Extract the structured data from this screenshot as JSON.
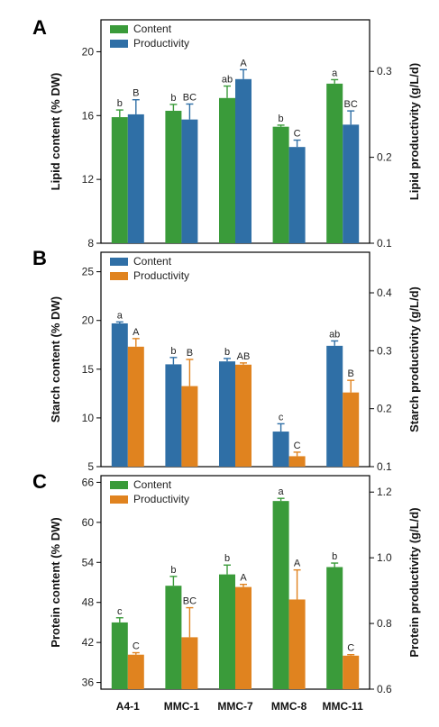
{
  "colors": {
    "green": "#3a9b3a",
    "blue": "#2f6fa6",
    "orange": "#e0831f"
  },
  "categories": [
    "A4-1",
    "MMC-1",
    "MMC-7",
    "MMC-8",
    "MMC-11"
  ],
  "chart_data": [
    {
      "type": "bar",
      "panel": "A",
      "ylabel": "Lipid content (% DW)",
      "y2label": "Lipid productivity (g/L/d)",
      "ylim": [
        8,
        22
      ],
      "yticks": [
        8,
        12,
        16,
        20
      ],
      "y2lim": [
        0.1,
        0.36
      ],
      "y2ticks": [
        "0.1",
        "0.2",
        "0.3"
      ],
      "legend": [
        "Content",
        "Productivity"
      ],
      "legend_position": "top-left",
      "series": [
        {
          "name": "Content",
          "axis": "left",
          "color": "green",
          "values": [
            15.9,
            16.3,
            17.1,
            15.3,
            18.0
          ],
          "errors": [
            0.45,
            0.4,
            0.75,
            0.1,
            0.25
          ],
          "letters": [
            "b",
            "b",
            "ab",
            "b",
            "a"
          ]
        },
        {
          "name": "Productivity",
          "axis": "right",
          "color": "blue",
          "values": [
            0.25,
            0.244,
            0.291,
            0.212,
            0.238
          ],
          "errors": [
            0.017,
            0.018,
            0.011,
            0.008,
            0.016
          ],
          "letters": [
            "B",
            "BC",
            "A",
            "C",
            "BC"
          ]
        }
      ]
    },
    {
      "type": "bar",
      "panel": "B",
      "ylabel": "Starch content (% DW)",
      "y2label": "Starch productivity (g/L/d)",
      "ylim": [
        5,
        27
      ],
      "yticks": [
        5,
        10,
        15,
        20,
        25
      ],
      "y2lim": [
        0.1,
        0.47
      ],
      "y2ticks": [
        "0.1",
        "0.2",
        "0.3",
        "0.4"
      ],
      "legend": [
        "Content",
        "Productivity"
      ],
      "legend_position": "top-left",
      "series": [
        {
          "name": "Content",
          "axis": "left",
          "color": "blue",
          "values": [
            19.7,
            15.5,
            15.8,
            8.6,
            17.4
          ],
          "errors": [
            0.15,
            0.7,
            0.3,
            0.8,
            0.5
          ],
          "letters": [
            "a",
            "b",
            "b",
            "c",
            "ab"
          ]
        },
        {
          "name": "Productivity",
          "axis": "right",
          "color": "orange",
          "values": [
            0.307,
            0.239,
            0.276,
            0.118,
            0.228
          ],
          "errors": [
            0.014,
            0.046,
            0.003,
            0.007,
            0.021
          ],
          "letters": [
            "A",
            "B",
            "AB",
            "C",
            "B"
          ]
        }
      ]
    },
    {
      "type": "bar",
      "panel": "C",
      "ylabel": "Protein content (% DW)",
      "y2label": "Protein productivity (g/L/d)",
      "ylim": [
        35,
        67
      ],
      "yticks": [
        36,
        42,
        48,
        54,
        60,
        66
      ],
      "y2lim": [
        0.6,
        1.25
      ],
      "y2ticks": [
        "0.6",
        "0.8",
        "1.0",
        "1.2"
      ],
      "legend": [
        "Content",
        "Productivity"
      ],
      "legend_position": "top-left",
      "series": [
        {
          "name": "Content",
          "axis": "left",
          "color": "green",
          "values": [
            45.0,
            50.5,
            52.2,
            63.2,
            53.3
          ],
          "errors": [
            0.7,
            1.4,
            1.4,
            0.4,
            0.6
          ],
          "letters": [
            "c",
            "b",
            "b",
            "a",
            "b"
          ]
        },
        {
          "name": "Productivity",
          "axis": "right",
          "color": "orange",
          "values": [
            0.705,
            0.758,
            0.911,
            0.873,
            0.702
          ],
          "errors": [
            0.006,
            0.09,
            0.008,
            0.09,
            0.003
          ],
          "letters": [
            "C",
            "BC",
            "A",
            "A",
            "C"
          ]
        }
      ]
    }
  ]
}
